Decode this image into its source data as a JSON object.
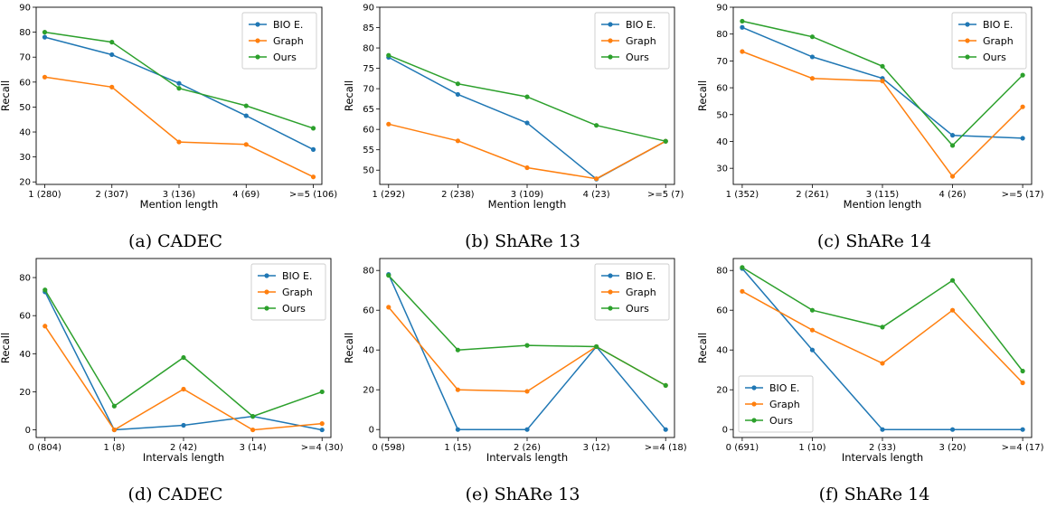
{
  "colors": {
    "BIO E.": "#1f77b4",
    "Graph": "#ff7f0e",
    "Ours": "#2ca02c"
  },
  "chart_data": [
    {
      "type": "line",
      "caption": "(a) CADEC",
      "xlabel": "Mention length",
      "ylabel": "Recall",
      "categories": [
        "1 (280)",
        "2 (307)",
        "3 (136)",
        "4 (69)",
        ">=5 (106)"
      ],
      "ylim": [
        19,
        90
      ],
      "yticks": [
        20,
        30,
        40,
        50,
        60,
        70,
        80,
        90
      ],
      "legend": "top-right",
      "series": [
        {
          "name": "BIO E.",
          "values": [
            78,
            71,
            59.5,
            46.5,
            33
          ]
        },
        {
          "name": "Graph",
          "values": [
            62,
            58,
            36,
            35,
            22
          ]
        },
        {
          "name": "Ours",
          "values": [
            80,
            76,
            57.5,
            50.5,
            41.5
          ]
        }
      ]
    },
    {
      "type": "line",
      "caption": "(b) ShARe 13",
      "xlabel": "Mention length",
      "ylabel": "Recall",
      "categories": [
        "1 (292)",
        "2 (238)",
        "3 (109)",
        "4 (23)",
        ">=5 (7)"
      ],
      "ylim": [
        46.5,
        90
      ],
      "yticks": [
        50,
        55,
        60,
        65,
        70,
        75,
        80,
        85,
        90
      ],
      "legend": "top-right",
      "series": [
        {
          "name": "BIO E.",
          "values": [
            77.7,
            68.6,
            61.6,
            47.8,
            57.1
          ]
        },
        {
          "name": "Graph",
          "values": [
            61.3,
            57.2,
            50.6,
            47.9,
            57.1
          ]
        },
        {
          "name": "Ours",
          "values": [
            78.2,
            71.2,
            68.0,
            61.0,
            57.1
          ]
        }
      ]
    },
    {
      "type": "line",
      "caption": "(c) ShARe 14",
      "xlabel": "Mention length",
      "ylabel": "Recall",
      "categories": [
        "1 (352)",
        "2 (261)",
        "3 (115)",
        "4 (26)",
        ">=5 (17)"
      ],
      "ylim": [
        24,
        90
      ],
      "yticks": [
        30,
        40,
        50,
        60,
        70,
        80,
        90
      ],
      "legend": "top-right",
      "series": [
        {
          "name": "BIO E.",
          "values": [
            82.5,
            71.5,
            63.5,
            42.3,
            41.2
          ]
        },
        {
          "name": "Graph",
          "values": [
            73.5,
            63.5,
            62.5,
            27,
            52.9
          ]
        },
        {
          "name": "Ours",
          "values": [
            84.8,
            79,
            68,
            38.5,
            64.7
          ]
        }
      ]
    },
    {
      "type": "line",
      "caption": "(d) CADEC",
      "xlabel": "Intervals length",
      "ylabel": "Recall",
      "categories": [
        "0 (804)",
        "1 (8)",
        "2 (42)",
        "3 (14)",
        ">=4 (30)"
      ],
      "ylim": [
        -4,
        90
      ],
      "yticks": [
        0,
        20,
        40,
        60,
        80
      ],
      "legend": "top-right",
      "series": [
        {
          "name": "BIO E.",
          "values": [
            72.5,
            0,
            2.4,
            7.1,
            0
          ]
        },
        {
          "name": "Graph",
          "values": [
            54.5,
            0,
            21.4,
            0,
            3.3
          ]
        },
        {
          "name": "Ours",
          "values": [
            73.5,
            12.5,
            38,
            7.1,
            20
          ]
        }
      ]
    },
    {
      "type": "line",
      "caption": "(e) ShARe 13",
      "xlabel": "Intervals length",
      "ylabel": "Recall",
      "categories": [
        "0 (598)",
        "1 (15)",
        "2 (26)",
        "3 (12)",
        ">=4 (18)"
      ],
      "ylim": [
        -4,
        86
      ],
      "yticks": [
        0,
        20,
        40,
        60,
        80
      ],
      "legend": "top-right",
      "series": [
        {
          "name": "BIO E.",
          "values": [
            78,
            0,
            0,
            41.7,
            0
          ]
        },
        {
          "name": "Graph",
          "values": [
            61.5,
            20,
            19.2,
            41.7,
            22.2
          ]
        },
        {
          "name": "Ours",
          "values": [
            77.5,
            40,
            42.3,
            41.7,
            22.2
          ]
        }
      ]
    },
    {
      "type": "line",
      "caption": "(f) ShARe 14",
      "xlabel": "Intervals length",
      "ylabel": "Recall",
      "categories": [
        "0 (691)",
        "1 (10)",
        "2 (33)",
        "3 (20)",
        ">=4 (17)"
      ],
      "ylim": [
        -4,
        86
      ],
      "yticks": [
        0,
        20,
        40,
        60,
        80
      ],
      "legend": "bottom-left",
      "series": [
        {
          "name": "BIO E.",
          "values": [
            81,
            40,
            0,
            0,
            0
          ]
        },
        {
          "name": "Graph",
          "values": [
            69.5,
            50,
            33.3,
            60,
            23.5
          ]
        },
        {
          "name": "Ours",
          "values": [
            81.5,
            60,
            51.5,
            75,
            29.4
          ]
        }
      ]
    }
  ]
}
